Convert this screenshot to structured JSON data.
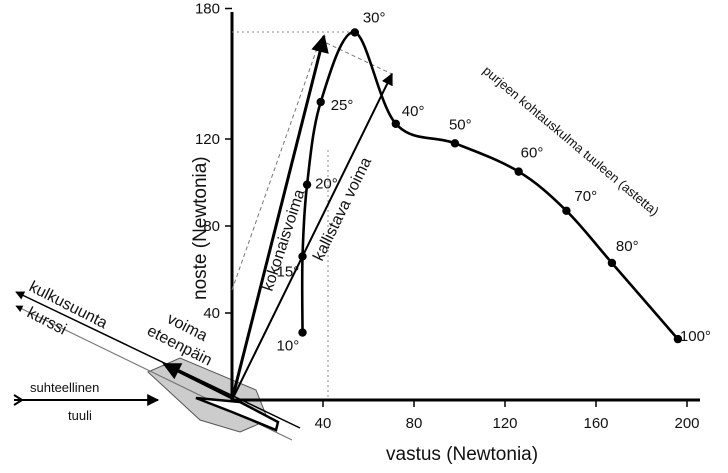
{
  "chart_data": {
    "type": "line",
    "xlabel": "vastus (Newtonia)",
    "ylabel": "noste (Newtonia)",
    "x_ticks": [
      40,
      80,
      120,
      160,
      200
    ],
    "y_ticks": [
      40,
      80,
      120,
      180
    ],
    "xlim": [
      0,
      205
    ],
    "ylim": [
      0,
      185
    ],
    "series": [
      {
        "name": "purjeen kohtauskulma tuuleen (astetta)",
        "points": [
          {
            "label": "10°",
            "x": 31,
            "y": 31
          },
          {
            "label": "15°",
            "x": 31,
            "y": 66
          },
          {
            "label": "20°",
            "x": 33,
            "y": 99
          },
          {
            "label": "25°",
            "x": 39,
            "y": 137
          },
          {
            "label": "30°",
            "x": 54,
            "y": 169
          },
          {
            "label": "40°",
            "x": 72,
            "y": 127
          },
          {
            "label": "50°",
            "x": 98,
            "y": 118
          },
          {
            "label": "60°",
            "x": 126,
            "y": 105
          },
          {
            "label": "70°",
            "x": 147,
            "y": 87
          },
          {
            "label": "80°",
            "x": 167,
            "y": 63
          },
          {
            "label": "100°",
            "x": 196,
            "y": 28
          }
        ]
      }
    ]
  },
  "labels": {
    "total_force": "kokonaisvoima",
    "heeling_force": "kallistava voima",
    "forward_force_1": "voima",
    "forward_force_2": "eteenpäin",
    "heading": "kulkusuunta",
    "course": "kurssi",
    "wind_1": "suhteellinen",
    "wind_2": "tuuli",
    "curve_title": "purjeen kohtauskulma tuuleen (astetta)"
  },
  "colors": {
    "line": "#000000",
    "hull": "#cccccc",
    "guide": "#888888"
  }
}
